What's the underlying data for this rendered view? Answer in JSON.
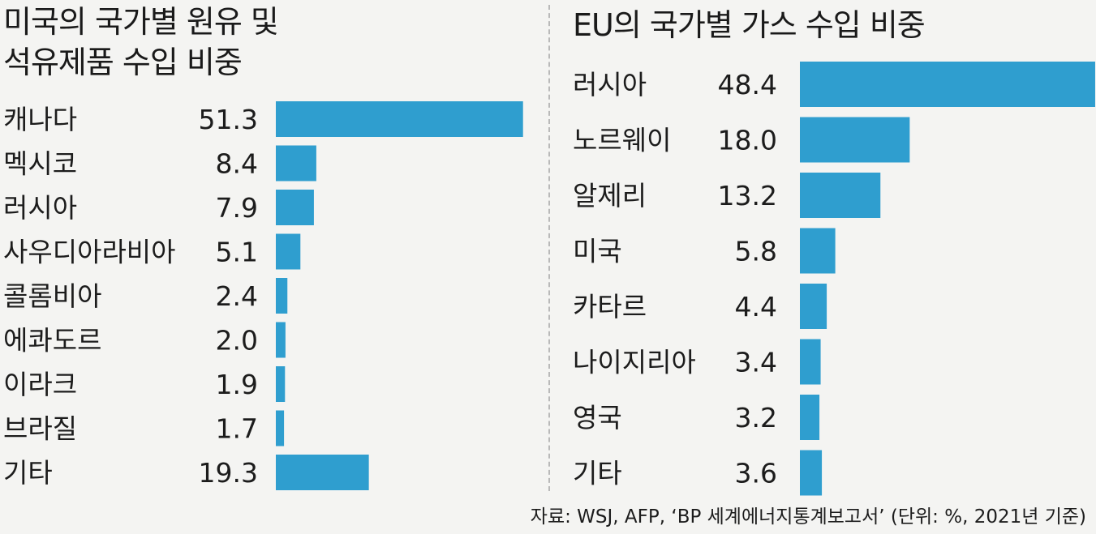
{
  "chart_data": [
    {
      "type": "bar",
      "orientation": "horizontal",
      "title": "미국의 국가별 원유 및\n석유제품 수입 비중",
      "categories": [
        "캐나다",
        "멕시코",
        "러시아",
        "사우디아라비아",
        "콜롬비아",
        "에콰도르",
        "이라크",
        "브라질",
        "기타"
      ],
      "values": [
        51.3,
        8.4,
        7.9,
        5.1,
        2.4,
        2.0,
        1.9,
        1.7,
        19.3
      ],
      "value_labels": [
        "51.3",
        "8.4",
        "7.9",
        "5.1",
        "2.4",
        "2.0",
        "1.9",
        "1.7",
        "19.3"
      ],
      "xlabel": "",
      "ylabel": "",
      "grid": false,
      "bar_color": "#2f9ecf"
    },
    {
      "type": "bar",
      "orientation": "horizontal",
      "title": "EU의 국가별 가스 수입 비중",
      "categories": [
        "러시아",
        "노르웨이",
        "알제리",
        "미국",
        "카타르",
        "나이지리아",
        "영국",
        "기타"
      ],
      "values": [
        48.4,
        18.0,
        13.2,
        5.8,
        4.4,
        3.4,
        3.2,
        3.6
      ],
      "value_labels": [
        "48.4",
        "18.0",
        "13.2",
        "5.8",
        "4.4",
        "3.4",
        "3.2",
        "3.6"
      ],
      "xlabel": "",
      "ylabel": "",
      "grid": false,
      "bar_color": "#2f9ecf"
    }
  ],
  "source": "자료: WSJ, AFP, ‘BP 세계에너지통계보고서’ (단위: %, 2021년 기준)"
}
